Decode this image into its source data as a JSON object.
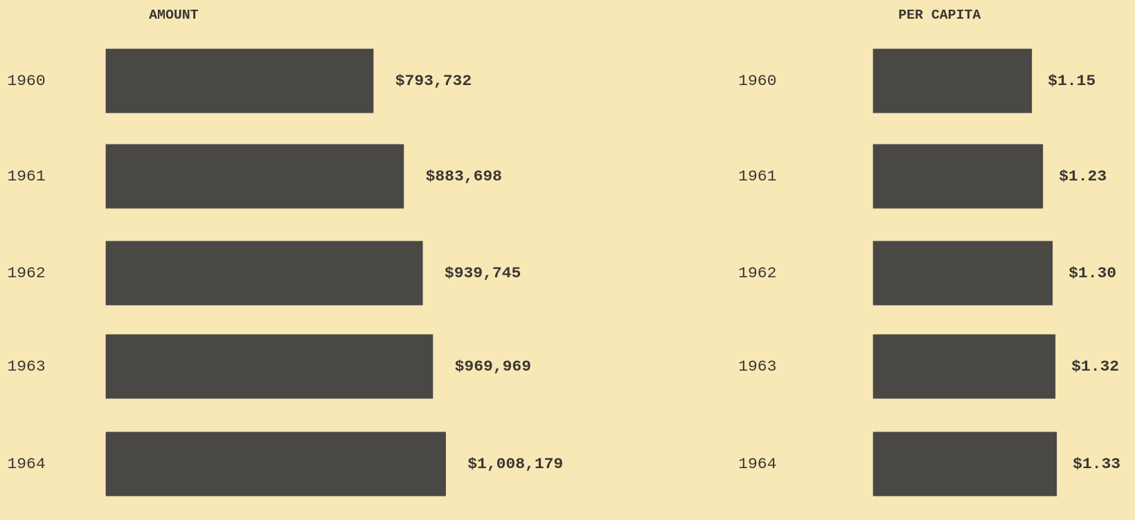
{
  "chart_data": [
    {
      "type": "bar",
      "orientation": "horizontal",
      "title": "AMOUNT",
      "categories": [
        "1960",
        "1961",
        "1962",
        "1963",
        "1964"
      ],
      "values": [
        793732,
        883698,
        939745,
        969969,
        1008179
      ],
      "value_labels": [
        "$793,732",
        "$883,698",
        "$939,745",
        "$969,969",
        "$1,008,179"
      ],
      "color": "#4a4845"
    },
    {
      "type": "bar",
      "orientation": "horizontal",
      "title": "PER CAPITA",
      "categories": [
        "1960",
        "1961",
        "1962",
        "1963",
        "1964"
      ],
      "values": [
        1.15,
        1.23,
        1.3,
        1.32,
        1.33
      ],
      "value_labels": [
        "$1.15",
        "$1.23",
        "$1.30",
        "$1.32",
        "$1.33"
      ],
      "color": "#4a4845"
    }
  ]
}
